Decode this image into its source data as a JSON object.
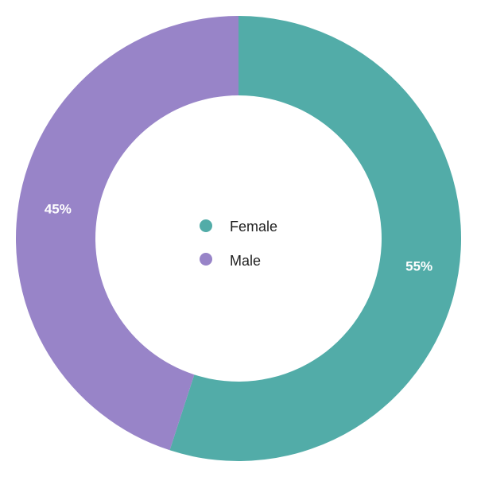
{
  "chart_data": {
    "type": "pie",
    "donut": true,
    "title": "",
    "slices": [
      {
        "label": "Female",
        "value": 55,
        "display": "55%",
        "color": "#52ACA8"
      },
      {
        "label": "Male",
        "value": 45,
        "display": "45%",
        "color": "#9884C8"
      }
    ],
    "legend": {
      "placement": "center",
      "items": [
        {
          "label": "Female",
          "color": "#52ACA8"
        },
        {
          "label": "Male",
          "color": "#9884C8"
        }
      ]
    }
  }
}
